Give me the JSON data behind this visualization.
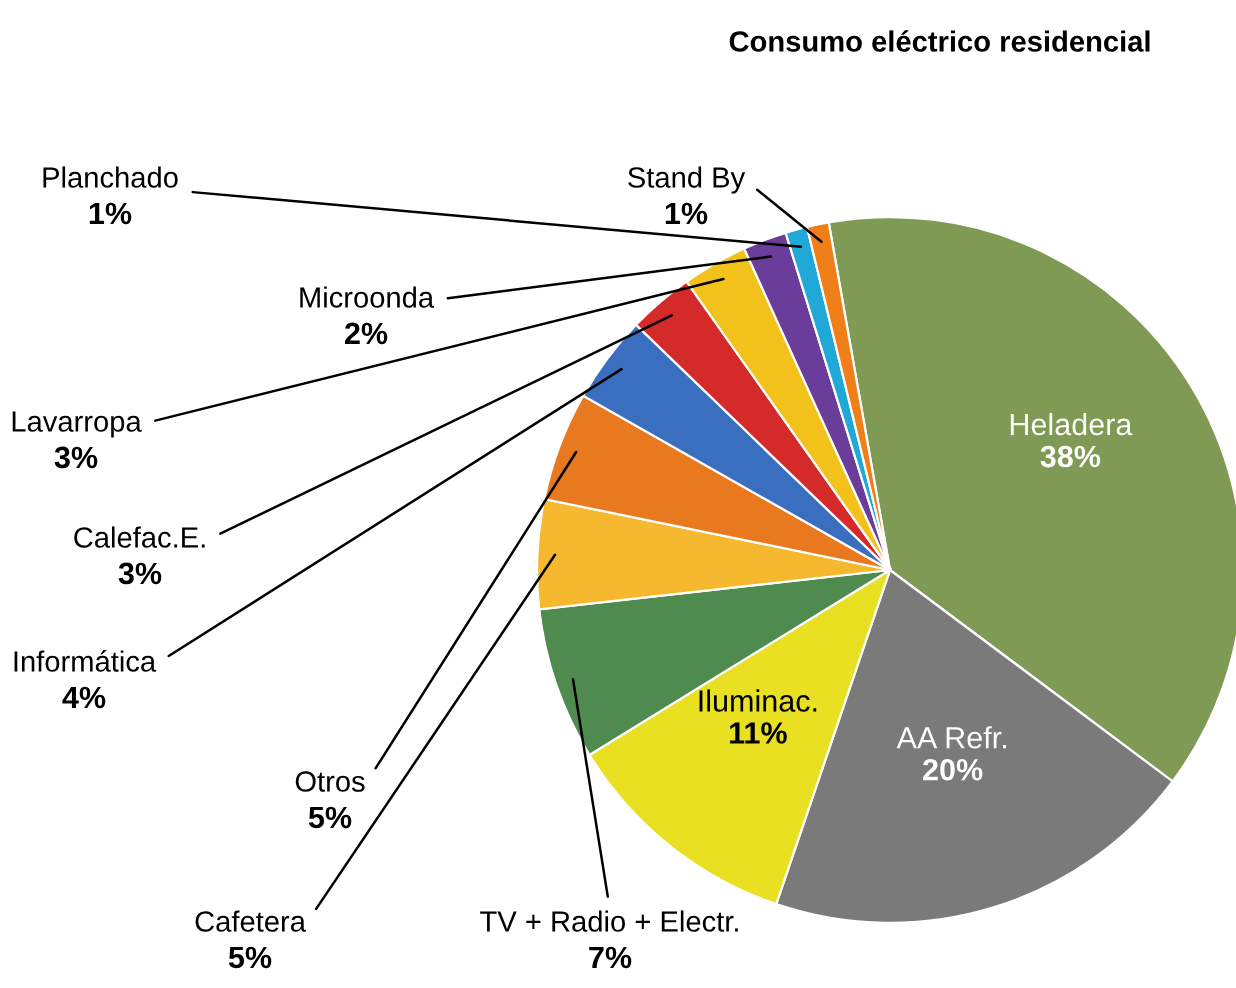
{
  "chart_data": {
    "type": "pie",
    "title": "Consumo eléctrico residencial",
    "categories": [
      "Heladera",
      "AA Refr.",
      "Iluminac.",
      "TV + Radio + Electr.",
      "Cafetera",
      "Otros",
      "Informática",
      "Calefac.E.",
      "Lavarropa",
      "Microonda",
      "Planchado",
      "Stand By"
    ],
    "values": [
      38,
      20,
      11,
      7,
      5,
      5,
      4,
      3,
      3,
      2,
      1,
      1
    ],
    "value_labels": [
      "38%",
      "20%",
      "11%",
      "7%",
      "5%",
      "5%",
      "4%",
      "3%",
      "3%",
      "2%",
      "1%",
      "1%"
    ],
    "colors": [
      "#7f9a55",
      "#7a7a7a",
      "#e8e020",
      "#4f8a4f",
      "#f5b82e",
      "#e8791e",
      "#3a6fc0",
      "#d42a2a",
      "#f2c21a",
      "#6a3d9a",
      "#1fa8d8",
      "#f07f1a"
    ]
  }
}
